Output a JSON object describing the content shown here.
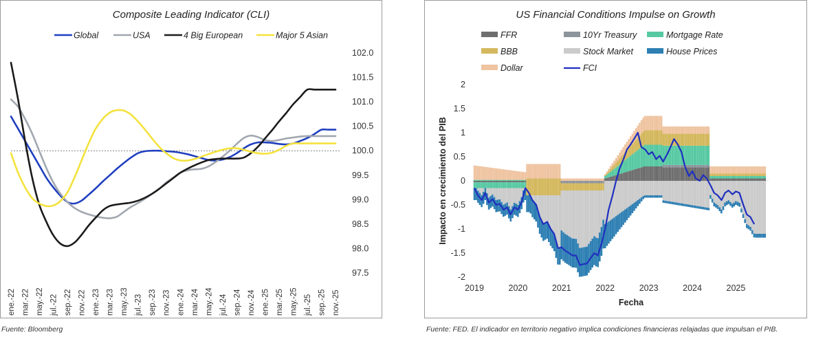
{
  "left": {
    "source": "Fuente: Bloomberg",
    "chart_data": {
      "type": "line",
      "title": "Composite Leading Indicator (CLI)",
      "x": [
        "ene.-22",
        "feb.-22",
        "mar.-22",
        "abr.-22",
        "may.-22",
        "jun.-22",
        "jul.-22",
        "ago.-22",
        "sep.-22",
        "oct.-22",
        "nov.-22",
        "dic.-22",
        "ene.-23",
        "feb.-23",
        "mar.-23",
        "abr.-23",
        "may.-23",
        "jun.-23",
        "jul.-23",
        "ago.-23",
        "sep.-23",
        "oct.-23",
        "nov.-23",
        "dic.-23",
        "ene.-24",
        "feb.-24",
        "mar.-24",
        "abr.-24",
        "may.-24",
        "jun.-24",
        "jul.-24",
        "ago.-24",
        "sep.-24",
        "oct.-24",
        "nov.-24",
        "dic.-24",
        "ene.-25",
        "feb.-25",
        "mar.-25",
        "abr.-25",
        "may.-25",
        "jun.-25",
        "jul.-25",
        "ago.-25",
        "sep.-25",
        "oct.-25",
        "nov.-25"
      ],
      "x_tick_labels": [
        "ene.-22",
        "mar.-22",
        "may.-22",
        "jul.-22",
        "sep.-22",
        "nov.-22",
        "ene.-23",
        "mar.-23",
        "may.-23",
        "jul.-23",
        "sep.-23",
        "nov.-23",
        "ene.-24",
        "mar.-24",
        "may.-24",
        "jul.-24",
        "sep.-24",
        "nov.-24",
        "ene.-25",
        "mar.-25",
        "may.-25",
        "jul.-25",
        "sep.-25",
        "nov.-25"
      ],
      "y_ticks": [
        "97.5",
        "98.0",
        "98.5",
        "99.0",
        "99.5",
        "100.0",
        "100.5",
        "101.0",
        "101.5",
        "102.0"
      ],
      "ylim": [
        97.5,
        102.0
      ],
      "y_axis_position": "right",
      "reference_line": 100.0,
      "legend_placement": "top",
      "series": [
        {
          "name": "Global",
          "color": "#1f3fbf",
          "values": [
            100.7,
            100.45,
            100.2,
            99.95,
            99.7,
            99.45,
            99.25,
            99.08,
            98.95,
            98.92,
            98.98,
            99.1,
            99.23,
            99.37,
            99.5,
            99.63,
            99.75,
            99.86,
            99.95,
            99.99,
            100.0,
            100.0,
            99.99,
            99.98,
            99.96,
            99.93,
            99.89,
            99.85,
            99.81,
            99.8,
            99.82,
            99.87,
            99.95,
            100.05,
            100.13,
            100.17,
            100.17,
            100.16,
            100.14,
            100.13,
            100.15,
            100.2,
            100.26,
            100.34,
            100.43,
            100.43,
            100.43
          ]
        },
        {
          "name": "USA",
          "color": "#a1a7af",
          "values": [
            101.05,
            100.9,
            100.65,
            100.35,
            100.0,
            99.65,
            99.35,
            99.12,
            98.95,
            98.83,
            98.75,
            98.7,
            98.66,
            98.63,
            98.62,
            98.65,
            98.75,
            98.85,
            98.93,
            99.02,
            99.12,
            99.22,
            99.35,
            99.45,
            99.55,
            99.6,
            99.62,
            99.63,
            99.68,
            99.77,
            99.88,
            100.0,
            100.14,
            100.26,
            100.31,
            100.28,
            100.22,
            100.2,
            100.22,
            100.25,
            100.27,
            100.29,
            100.3,
            100.3,
            100.3,
            100.3,
            100.3
          ]
        },
        {
          "name": "4 Big European",
          "color": "#1b1b1b",
          "values": [
            101.8,
            101.05,
            100.2,
            99.45,
            98.9,
            98.55,
            98.27,
            98.1,
            98.05,
            98.12,
            98.28,
            98.47,
            98.63,
            98.78,
            98.87,
            98.9,
            98.92,
            98.94,
            98.98,
            99.04,
            99.12,
            99.22,
            99.33,
            99.44,
            99.55,
            99.63,
            99.7,
            99.76,
            99.81,
            99.83,
            99.84,
            99.84,
            99.84,
            99.86,
            99.95,
            100.08,
            100.25,
            100.42,
            100.6,
            100.77,
            100.95,
            101.1,
            101.25,
            101.25,
            101.25,
            101.25,
            101.25
          ]
        },
        {
          "name": "Major 5 Asian",
          "color": "#f3e23c",
          "values": [
            99.95,
            99.55,
            99.25,
            99.03,
            98.92,
            98.87,
            98.88,
            98.97,
            99.15,
            99.45,
            99.8,
            100.15,
            100.45,
            100.65,
            100.78,
            100.83,
            100.82,
            100.74,
            100.6,
            100.43,
            100.25,
            100.08,
            99.95,
            99.85,
            99.8,
            99.8,
            99.83,
            99.88,
            99.93,
            99.98,
            100.02,
            100.05,
            100.05,
            100.02,
            99.98,
            99.95,
            99.94,
            99.96,
            100.02,
            100.1,
            100.15,
            100.15,
            100.15,
            100.15,
            100.15,
            100.15,
            100.15
          ]
        }
      ]
    }
  },
  "right": {
    "source": "Fuente: FED. El indicador en territorio negativo implica condiciones financieras relajadas que impulsan el PIB.",
    "chart_data": {
      "type": "bar",
      "title": "US Financial Conditions Impulse on Growth",
      "xlabel": "Fecha",
      "ylabel": "Impacto en crecimiento del PIB",
      "ylim": [
        -2,
        2
      ],
      "y_ticks": [
        "-2",
        "-1.5",
        "-1",
        "-0.5",
        "0",
        "0.5",
        "1",
        "1.5",
        "2"
      ],
      "x_ticks": [
        "2019",
        "2020",
        "2021",
        "2022",
        "2023",
        "2024",
        "2025"
      ],
      "x_range": [
        2019.0,
        2025.75
      ],
      "stacked": true,
      "legend_placement": "top",
      "component_series": [
        {
          "name": "FFR",
          "color": "#6e6e6e"
        },
        {
          "name": "10Yr Treasury",
          "color": "#8d949c"
        },
        {
          "name": "Mortgage Rate",
          "color": "#57c9a2"
        },
        {
          "name": "BBB",
          "color": "#d4b85e"
        },
        {
          "name": "Stock Market",
          "color": "#cbcbcb"
        },
        {
          "name": "House Prices",
          "color": "#2e7fb3"
        },
        {
          "name": "Dollar",
          "color": "#efc4a1"
        }
      ],
      "line_series": {
        "name": "FCI",
        "color": "#1f2fbf"
      },
      "fci_points": [
        [
          2019.0,
          -0.15
        ],
        [
          2019.08,
          -0.3
        ],
        [
          2019.17,
          -0.4
        ],
        [
          2019.25,
          -0.25
        ],
        [
          2019.33,
          -0.45
        ],
        [
          2019.42,
          -0.38
        ],
        [
          2019.5,
          -0.5
        ],
        [
          2019.58,
          -0.48
        ],
        [
          2019.67,
          -0.6
        ],
        [
          2019.75,
          -0.55
        ],
        [
          2019.83,
          -0.7
        ],
        [
          2019.92,
          -0.55
        ],
        [
          2020.0,
          -0.6
        ],
        [
          2020.08,
          -0.45
        ],
        [
          2020.17,
          -0.15
        ],
        [
          2020.25,
          -0.25
        ],
        [
          2020.33,
          -0.4
        ],
        [
          2020.42,
          -0.5
        ],
        [
          2020.5,
          -0.75
        ],
        [
          2020.58,
          -0.9
        ],
        [
          2020.67,
          -0.85
        ],
        [
          2020.75,
          -1.0
        ],
        [
          2020.83,
          -1.1
        ],
        [
          2020.92,
          -1.4
        ],
        [
          2021.0,
          -1.38
        ],
        [
          2021.08,
          -1.45
        ],
        [
          2021.17,
          -1.5
        ],
        [
          2021.25,
          -1.55
        ],
        [
          2021.33,
          -1.55
        ],
        [
          2021.42,
          -1.75
        ],
        [
          2021.5,
          -1.73
        ],
        [
          2021.58,
          -1.72
        ],
        [
          2021.67,
          -1.6
        ],
        [
          2021.75,
          -1.5
        ],
        [
          2021.83,
          -1.55
        ],
        [
          2021.92,
          -1.3
        ],
        [
          2022.0,
          -1.0
        ],
        [
          2022.08,
          -0.6
        ],
        [
          2022.17,
          -0.3
        ],
        [
          2022.25,
          0.0
        ],
        [
          2022.33,
          0.25
        ],
        [
          2022.42,
          0.45
        ],
        [
          2022.5,
          0.65
        ],
        [
          2022.58,
          0.75
        ],
        [
          2022.67,
          0.88
        ],
        [
          2022.75,
          1.0
        ],
        [
          2022.83,
          0.7
        ],
        [
          2022.92,
          0.65
        ],
        [
          2023.0,
          0.55
        ],
        [
          2023.08,
          0.6
        ],
        [
          2023.17,
          0.45
        ],
        [
          2023.25,
          0.52
        ],
        [
          2023.33,
          0.4
        ],
        [
          2023.42,
          0.55
        ],
        [
          2023.5,
          0.7
        ],
        [
          2023.58,
          0.87
        ],
        [
          2023.67,
          0.75
        ],
        [
          2023.75,
          0.6
        ],
        [
          2023.83,
          0.3
        ],
        [
          2023.92,
          0.1
        ],
        [
          2024.0,
          0.2
        ],
        [
          2024.08,
          0.05
        ],
        [
          2024.17,
          0.0
        ],
        [
          2024.25,
          0.12
        ],
        [
          2024.33,
          0.05
        ],
        [
          2024.42,
          -0.1
        ],
        [
          2024.5,
          -0.25
        ],
        [
          2024.58,
          -0.3
        ],
        [
          2024.67,
          -0.4
        ],
        [
          2024.75,
          -0.25
        ],
        [
          2024.83,
          -0.2
        ],
        [
          2024.92,
          -0.28
        ],
        [
          2025.0,
          -0.22
        ],
        [
          2025.08,
          -0.25
        ],
        [
          2025.17,
          -0.5
        ],
        [
          2025.25,
          -0.7
        ],
        [
          2025.33,
          -0.75
        ],
        [
          2025.42,
          -0.9
        ]
      ]
    }
  }
}
